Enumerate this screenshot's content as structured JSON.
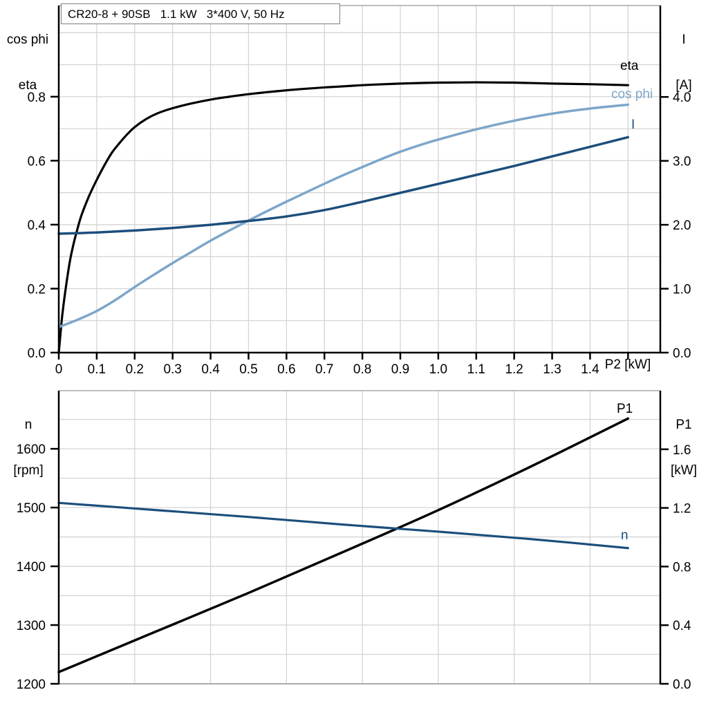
{
  "colors": {
    "axis": "#000000",
    "frame_gray": "#a9a9a9",
    "grid": "#d4d4d4",
    "black_curve": "#000000",
    "light_blue": "#7da6c9",
    "dark_blue": "#1c4e7c"
  },
  "chart_data": [
    {
      "name": "motor-electrical-curves",
      "type": "line",
      "title": "CR20-8 + 90SB   1.1 kW   3*400 V, 50 Hz",
      "xlabel": "P2 [kW]",
      "x_axis": {
        "min": 0,
        "max": 1.585,
        "grid_step": 0.1,
        "grid_max": 1.5,
        "ticks": [
          [
            0,
            "0"
          ],
          [
            0.1,
            "0.1"
          ],
          [
            0.2,
            "0.2"
          ],
          [
            0.3,
            "0.3"
          ],
          [
            0.4,
            "0.4"
          ],
          [
            0.5,
            "0.5"
          ],
          [
            0.6,
            "0.6"
          ],
          [
            0.7,
            "0.7"
          ],
          [
            0.8,
            "0.8"
          ],
          [
            0.9,
            "0.9"
          ],
          [
            1.0,
            "1.0"
          ],
          [
            1.1,
            "1.1"
          ],
          [
            1.2,
            "1.2"
          ],
          [
            1.3,
            "1.3"
          ],
          [
            1.4,
            "1.4"
          ]
        ]
      },
      "left_axis": {
        "title1": "cos phi",
        "title2": "eta",
        "min": 0,
        "max": 1.085,
        "grid_step": 0.1,
        "grid_max": 1.0,
        "ticks": [
          [
            0.0,
            "0.0"
          ],
          [
            0.2,
            "0.2"
          ],
          [
            0.4,
            "0.4"
          ],
          [
            0.6,
            "0.6"
          ],
          [
            0.8,
            "0.8"
          ]
        ]
      },
      "right_axis": {
        "title1": "I",
        "title2": "[A]",
        "min": 0,
        "max": 5.43,
        "ticks": [
          [
            0.0,
            "0.0"
          ],
          [
            1.0,
            "1.0"
          ],
          [
            2.0,
            "2.0"
          ],
          [
            3.0,
            "3.0"
          ],
          [
            4.0,
            "4.0"
          ]
        ]
      },
      "series": [
        {
          "name": "eta",
          "label": "eta",
          "axis": "left",
          "color": "#000000",
          "width": 3.2,
          "points": [
            [
              0,
              0
            ],
            [
              0.005,
              0.065
            ],
            [
              0.01,
              0.125
            ],
            [
              0.02,
              0.215
            ],
            [
              0.03,
              0.29
            ],
            [
              0.04,
              0.345
            ],
            [
              0.05,
              0.39
            ],
            [
              0.06,
              0.43
            ],
            [
              0.08,
              0.49
            ],
            [
              0.1,
              0.54
            ],
            [
              0.12,
              0.585
            ],
            [
              0.14,
              0.625
            ],
            [
              0.16,
              0.655
            ],
            [
              0.18,
              0.682
            ],
            [
              0.2,
              0.705
            ],
            [
              0.23,
              0.73
            ],
            [
              0.26,
              0.748
            ],
            [
              0.3,
              0.764
            ],
            [
              0.35,
              0.779
            ],
            [
              0.4,
              0.791
            ],
            [
              0.45,
              0.8
            ],
            [
              0.5,
              0.808
            ],
            [
              0.6,
              0.82
            ],
            [
              0.7,
              0.829
            ],
            [
              0.8,
              0.836
            ],
            [
              0.9,
              0.841
            ],
            [
              1.0,
              0.844
            ],
            [
              1.1,
              0.845
            ],
            [
              1.2,
              0.844
            ],
            [
              1.3,
              0.841
            ],
            [
              1.4,
              0.839
            ],
            [
              1.5,
              0.836
            ]
          ]
        },
        {
          "name": "cos phi",
          "label": "cos phi",
          "axis": "left",
          "color": "#7da6c9",
          "width": 3.5,
          "points": [
            [
              0,
              0.08
            ],
            [
              0.05,
              0.103
            ],
            [
              0.1,
              0.13
            ],
            [
              0.15,
              0.165
            ],
            [
              0.2,
              0.205
            ],
            [
              0.25,
              0.243
            ],
            [
              0.3,
              0.28
            ],
            [
              0.35,
              0.315
            ],
            [
              0.4,
              0.35
            ],
            [
              0.45,
              0.382
            ],
            [
              0.5,
              0.413
            ],
            [
              0.55,
              0.443
            ],
            [
              0.6,
              0.472
            ],
            [
              0.65,
              0.5
            ],
            [
              0.7,
              0.528
            ],
            [
              0.75,
              0.555
            ],
            [
              0.8,
              0.58
            ],
            [
              0.85,
              0.605
            ],
            [
              0.9,
              0.628
            ],
            [
              0.95,
              0.648
            ],
            [
              1.0,
              0.666
            ],
            [
              1.1,
              0.698
            ],
            [
              1.2,
              0.725
            ],
            [
              1.3,
              0.747
            ],
            [
              1.4,
              0.763
            ],
            [
              1.5,
              0.775
            ]
          ]
        },
        {
          "name": "I",
          "label": "I",
          "axis": "right",
          "color": "#1c4e7c",
          "width": 3.5,
          "points": [
            [
              0,
              1.86
            ],
            [
              0.1,
              1.88
            ],
            [
              0.2,
              1.91
            ],
            [
              0.3,
              1.95
            ],
            [
              0.4,
              2.0
            ],
            [
              0.5,
              2.06
            ],
            [
              0.6,
              2.13
            ],
            [
              0.7,
              2.23
            ],
            [
              0.8,
              2.36
            ],
            [
              0.9,
              2.5
            ],
            [
              1.0,
              2.64
            ],
            [
              1.1,
              2.78
            ],
            [
              1.2,
              2.92
            ],
            [
              1.3,
              3.07
            ],
            [
              1.4,
              3.22
            ],
            [
              1.5,
              3.37
            ]
          ]
        }
      ]
    },
    {
      "name": "motor-speed-power-curves",
      "type": "line",
      "xlabel": "",
      "x_axis": {
        "min": 0,
        "max": 1.585,
        "grid_step": 0.2,
        "grid_max": 1.4,
        "ticks": []
      },
      "left_axis": {
        "title1": "n",
        "title2": "[rpm]",
        "min": 1200,
        "max": 1699,
        "grid_step": 50,
        "grid_max": 1650,
        "ticks": [
          [
            1200,
            "1200"
          ],
          [
            1300,
            "1300"
          ],
          [
            1400,
            "1400"
          ],
          [
            1500,
            "1500"
          ],
          [
            1600,
            "1600"
          ]
        ]
      },
      "right_axis": {
        "title1": "P1",
        "title2": "[kW]",
        "min": 0,
        "max": 2.0,
        "ticks": [
          [
            0.0,
            "0.0"
          ],
          [
            0.4,
            "0.4"
          ],
          [
            0.8,
            "0.8"
          ],
          [
            1.2,
            "1.2"
          ],
          [
            1.6,
            "1.6"
          ]
        ]
      },
      "series": [
        {
          "name": "P1",
          "label": "P1",
          "axis": "right",
          "color": "#000000",
          "width": 3.5,
          "points": [
            [
              0,
              0.08
            ],
            [
              0.25,
              0.35
            ],
            [
              0.5,
              0.62
            ],
            [
              0.75,
              0.9
            ],
            [
              1.0,
              1.185
            ],
            [
              1.25,
              1.49
            ],
            [
              1.5,
              1.81
            ]
          ]
        },
        {
          "name": "n",
          "label": "n",
          "axis": "left",
          "color": "#1c4e7c",
          "width": 3.2,
          "points": [
            [
              0,
              1508
            ],
            [
              0.25,
              1496
            ],
            [
              0.5,
              1484
            ],
            [
              0.75,
              1471
            ],
            [
              1.0,
              1459
            ],
            [
              1.25,
              1446
            ],
            [
              1.5,
              1431
            ]
          ]
        }
      ]
    }
  ]
}
